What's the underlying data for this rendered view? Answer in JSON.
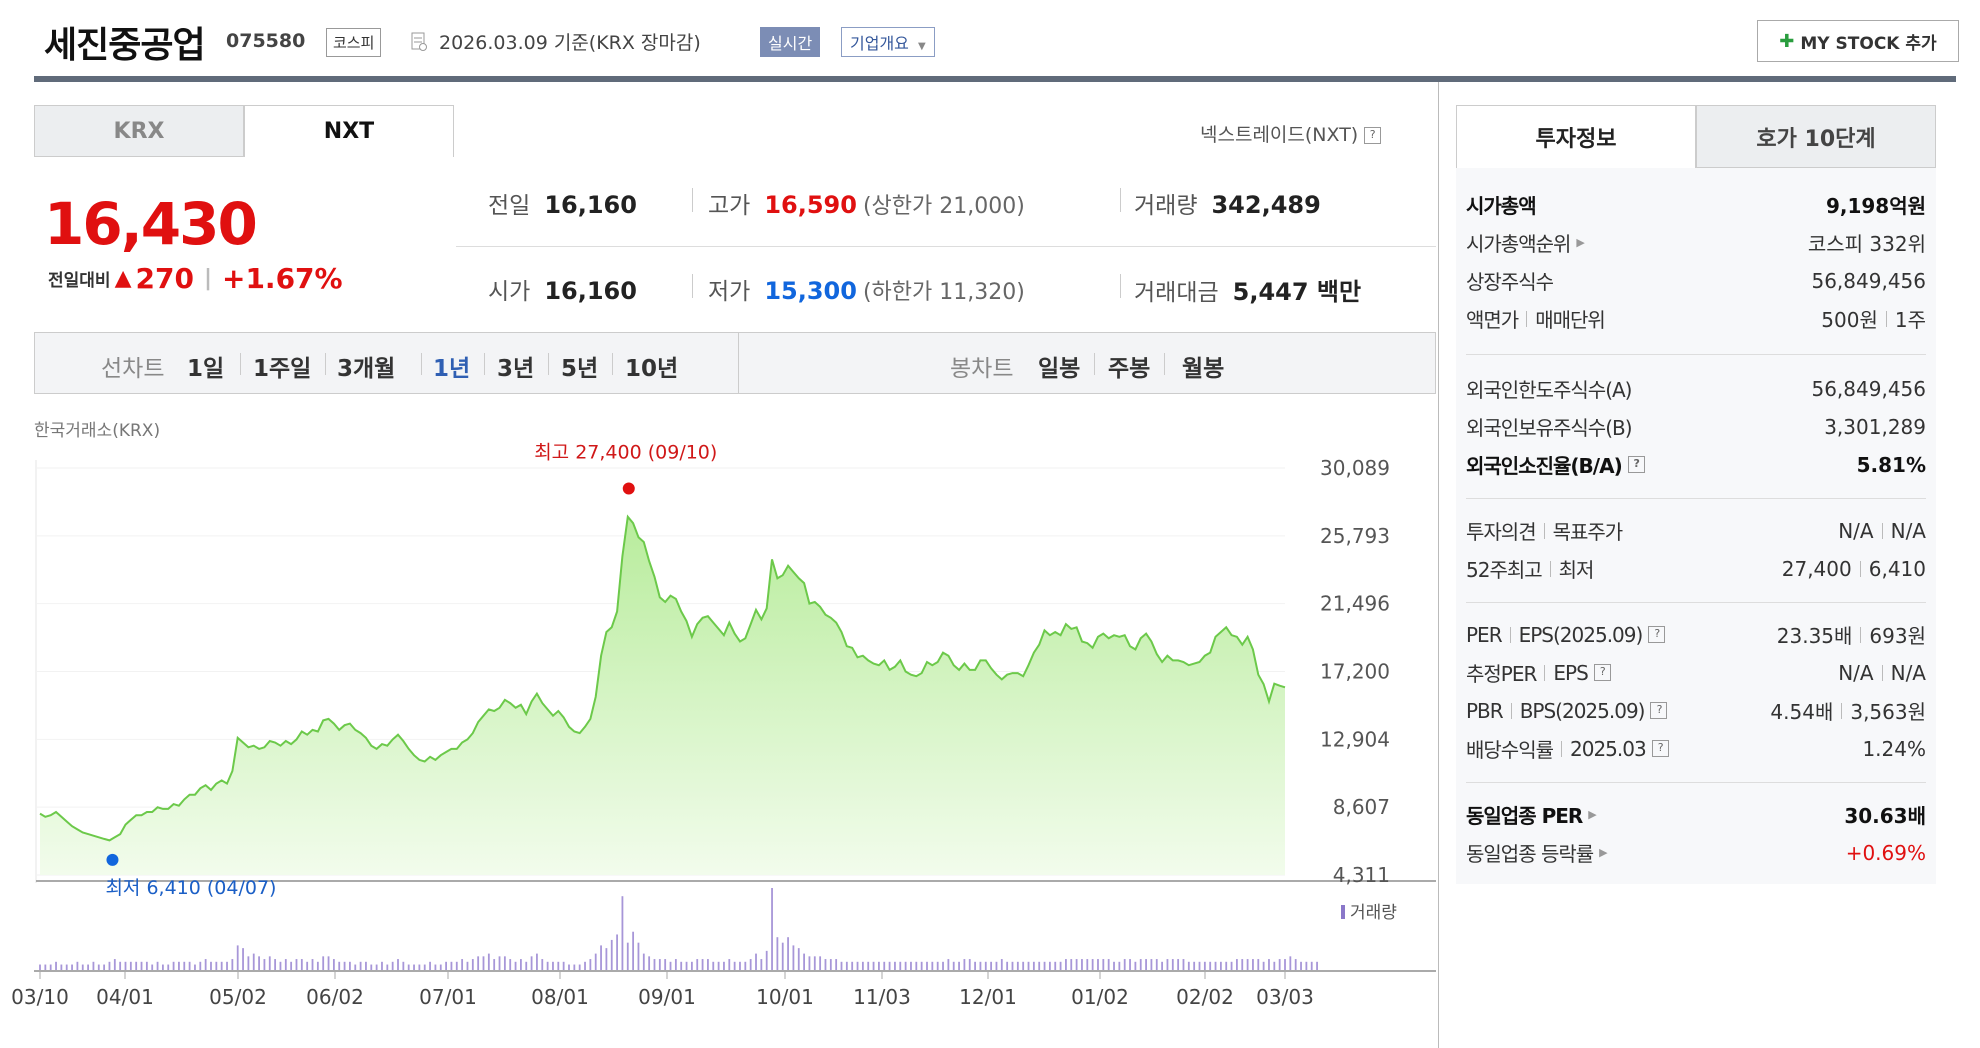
{
  "header": {
    "company_name": "세진중공업",
    "stock_code": "075580",
    "market": "코스피",
    "date_text": "2026.03.09  기준(KRX 장마감)",
    "realtime_label": "실시간",
    "company_overview_label": "기업개요",
    "mystock_label": "MY STOCK 추가"
  },
  "exchange_tabs": [
    "KRX",
    "NXT"
  ],
  "nxt_link": "넥스트레이드(NXT)",
  "price": {
    "current": "16,430",
    "change_label": "전일대비",
    "change": "270",
    "change_pct": "+1.67%"
  },
  "quotes": {
    "prev_close": {
      "label": "전일",
      "value": "16,160"
    },
    "high": {
      "label": "고가",
      "value": "16,590",
      "limit_text": "(상한가 21,000)"
    },
    "volume": {
      "label": "거래량",
      "value": "342,489"
    },
    "open": {
      "label": "시가",
      "value": "16,160"
    },
    "low": {
      "label": "저가",
      "value": "15,300",
      "limit_text": "(하한가 11,320)"
    },
    "amount": {
      "label": "거래대금",
      "value": "5,447 백만"
    }
  },
  "range_bar": {
    "line_chart_label": "선차트",
    "ranges": [
      "1일",
      "1주일",
      "3개월",
      "1년",
      "3년",
      "5년",
      "10년"
    ],
    "active_range": "1년",
    "candle_chart_label": "봉차트",
    "candles": [
      "일봉",
      "주봉",
      "월봉"
    ]
  },
  "chart_data": {
    "type": "area",
    "exchange_label": "한국거래소(KRX)",
    "y_ticks": [
      4311,
      8607,
      12904,
      17200,
      21496,
      25793,
      30089
    ],
    "ylim": [
      4311,
      30089
    ],
    "x_ticks": [
      "03/10",
      "04/01",
      "05/02",
      "06/02",
      "07/01",
      "08/01",
      "09/01",
      "10/01",
      "11/03",
      "12/01",
      "01/02",
      "02/02",
      "03/03"
    ],
    "high_annotation": "최고 27,400 (09/10)",
    "low_annotation": "최저 6,410 (04/07)",
    "volume_label": "거래량",
    "series": [
      {
        "values": [
          8200,
          8000,
          8100,
          8300,
          8000,
          7700,
          7400,
          7200,
          7000,
          6900,
          6800,
          6700,
          6600,
          6500,
          6700,
          6900,
          7500,
          7800,
          8100,
          8100,
          8300,
          8300,
          8600,
          8500,
          8500,
          8800,
          8700,
          9100,
          9400,
          9400,
          9800,
          10000,
          9700,
          10100,
          10300,
          10100,
          10900,
          13000,
          12700,
          12400,
          12500,
          12300,
          12400,
          12800,
          12700,
          12500,
          12800,
          12600,
          12900,
          13400,
          13200,
          13500,
          13400,
          14100,
          14200,
          13900,
          13500,
          13800,
          13900,
          13500,
          13300,
          13000,
          12500,
          12300,
          12600,
          12500,
          12900,
          13200,
          12800,
          12300,
          11900,
          11600,
          11500,
          11800,
          11600,
          11900,
          12100,
          12300,
          12300,
          12700,
          12900,
          13300,
          14000,
          14400,
          14800,
          14700,
          14900,
          15400,
          15200,
          14900,
          15100,
          14500,
          15300,
          15800,
          15200,
          14800,
          14400,
          14700,
          14300,
          13700,
          13400,
          13300,
          13700,
          14200,
          15600,
          18200,
          19700,
          20000,
          21000,
          24500,
          27000,
          26600,
          25700,
          25400,
          24200,
          23200,
          21900,
          21600,
          22000,
          21800,
          21000,
          20400,
          19400,
          20200,
          20600,
          20700,
          20300,
          19900,
          19500,
          20300,
          19600,
          19100,
          19300,
          20200,
          21100,
          20500,
          21200,
          24300,
          23100,
          23300,
          23900,
          23500,
          23100,
          22800,
          21500,
          21600,
          21300,
          20800,
          20600,
          20300,
          19700,
          18800,
          18700,
          18100,
          18200,
          17900,
          17700,
          17600,
          17900,
          17300,
          17500,
          17900,
          17200,
          17000,
          16900,
          17100,
          17800,
          17600,
          17800,
          18400,
          18200,
          17600,
          17300,
          17700,
          17300,
          17300,
          17900,
          17900,
          17400,
          17000,
          16700,
          17000,
          17100,
          17100,
          16900,
          17600,
          18400,
          18900,
          19800,
          19500,
          19700,
          19500,
          20200,
          19900,
          20000,
          19100,
          19000,
          18700,
          19400,
          19600,
          19300,
          19500,
          19400,
          19500,
          18800,
          18600,
          19300,
          19600,
          19100,
          18300,
          17800,
          18200,
          17900,
          17900,
          17800,
          17600,
          17700,
          17800,
          18200,
          18400,
          19400,
          19700,
          20000,
          19500,
          19400,
          18900,
          19400,
          18600,
          17000,
          16400,
          15300,
          16430,
          16300,
          16200
        ]
      }
    ],
    "volume_series": [
      2,
      2,
      2,
      3,
      2,
      2,
      2,
      3,
      2,
      2,
      3,
      2,
      2,
      3,
      4,
      3,
      3,
      3,
      3,
      3,
      3,
      2,
      3,
      2,
      2,
      3,
      3,
      3,
      3,
      2,
      3,
      4,
      3,
      3,
      3,
      3,
      4,
      9,
      8,
      5,
      6,
      5,
      4,
      5,
      4,
      3,
      4,
      3,
      4,
      4,
      3,
      4,
      3,
      5,
      5,
      4,
      3,
      3,
      3,
      2,
      3,
      3,
      2,
      2,
      3,
      2,
      3,
      4,
      3,
      2,
      2,
      2,
      2,
      3,
      2,
      2,
      3,
      3,
      3,
      4,
      3,
      4,
      5,
      5,
      6,
      4,
      5,
      5,
      4,
      3,
      4,
      3,
      5,
      6,
      4,
      3,
      3,
      3,
      3,
      2,
      2,
      2,
      3,
      4,
      6,
      9,
      8,
      11,
      13,
      27,
      10,
      14,
      10,
      6,
      5,
      4,
      4,
      4,
      3,
      4,
      3,
      3,
      3,
      4,
      4,
      4,
      3,
      3,
      3,
      4,
      3,
      3,
      3,
      4,
      6,
      4,
      7,
      30,
      12,
      10,
      12,
      9,
      8,
      6,
      5,
      5,
      5,
      4,
      4,
      4,
      3,
      3,
      3,
      3,
      3,
      3,
      3,
      3,
      3,
      3,
      3,
      3,
      3,
      3,
      3,
      3,
      3,
      3,
      3,
      3,
      4,
      3,
      3,
      4,
      4,
      3,
      3,
      3,
      3,
      3,
      4,
      3,
      3,
      3,
      3,
      3,
      3,
      3,
      3,
      3,
      3,
      3,
      4,
      4,
      4,
      4,
      4,
      4,
      4,
      4,
      4,
      3,
      3,
      4,
      4,
      3,
      4,
      4,
      4,
      4,
      3,
      4,
      4,
      4,
      4,
      3,
      3,
      3,
      3,
      3,
      3,
      3,
      3,
      3,
      4,
      4,
      4,
      4,
      4,
      3,
      4,
      3,
      4,
      4,
      5,
      4,
      3,
      3,
      3,
      3
    ]
  },
  "side_tabs": [
    "투자정보",
    "호가 10단계"
  ],
  "side": {
    "market_cap": {
      "label": "시가총액",
      "value": "9,198억원"
    },
    "market_cap_rank": {
      "label": "시가총액순위",
      "value": "코스피 332위"
    },
    "shares": {
      "label": "상장주식수",
      "value": "56,849,456"
    },
    "face_value": {
      "label": "액면가",
      "label2": "매매단위",
      "value": "500원",
      "value2": "1주"
    },
    "foreign_limit": {
      "label": "외국인한도주식수(A)",
      "value": "56,849,456"
    },
    "foreign_holding": {
      "label": "외국인보유주식수(B)",
      "value": "3,301,289"
    },
    "foreign_ratio": {
      "label": "외국인소진율(B/A)",
      "value": "5.81%"
    },
    "opinion": {
      "label": "투자의견",
      "label2": "목표주가",
      "value": "N/A",
      "value2": "N/A"
    },
    "week52": {
      "label": "52주최고",
      "label2": "최저",
      "value": "27,400",
      "value2": "6,410"
    },
    "per_eps": {
      "label": "PER",
      "label2": "EPS(2025.09)",
      "value": "23.35배",
      "value2": "693원"
    },
    "est_per_eps": {
      "label": "추정PER",
      "label2": "EPS",
      "value": "N/A",
      "value2": "N/A"
    },
    "pbr_bps": {
      "label": "PBR",
      "label2": "BPS(2025.09)",
      "value": "4.54배",
      "value2": "3,563원"
    },
    "dividend": {
      "label": "배당수익률",
      "label2": "2025.03",
      "value": "1.24%"
    },
    "industry_per": {
      "label": "동일업종 PER",
      "value": "30.63배"
    },
    "industry_change": {
      "label": "동일업종 등락률",
      "value": "+0.69%"
    }
  }
}
